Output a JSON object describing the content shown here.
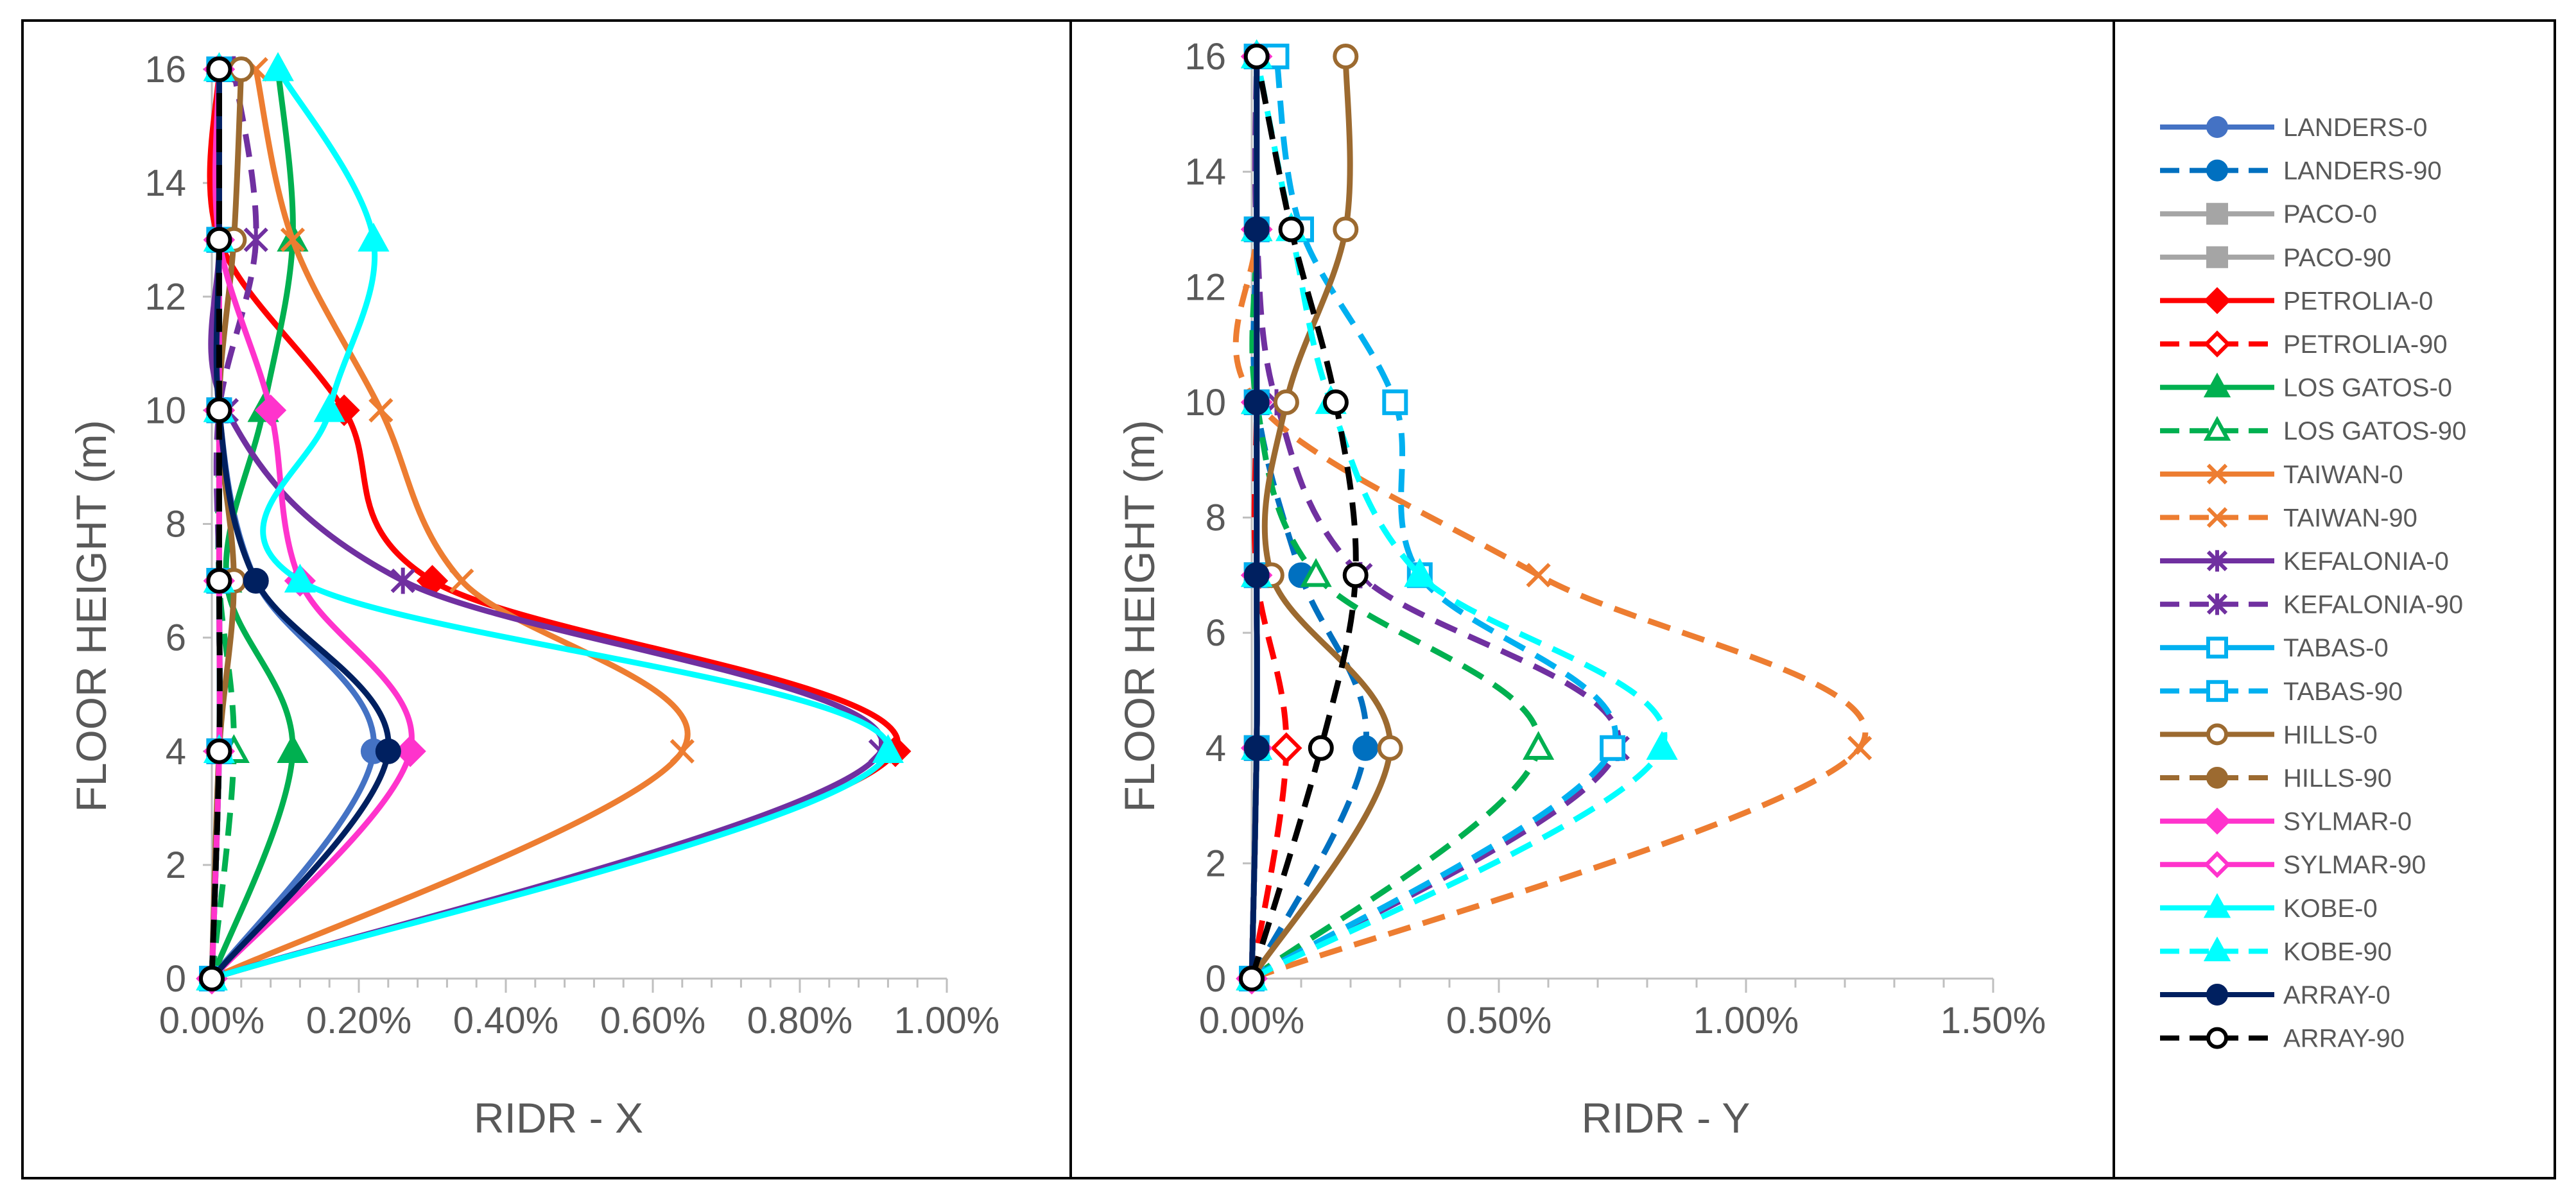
{
  "chart_data": [
    {
      "type": "line",
      "panel": "left",
      "orientation": "x-value-vs-height",
      "xlabel": "RIDR - X",
      "ylabel": "FLOOR HEIGHT (m)",
      "xlim": [
        0,
        0.01
      ],
      "ylim": [
        0,
        16
      ],
      "xticks": [
        0,
        0.002,
        0.004,
        0.006,
        0.008,
        0.01
      ],
      "xtick_labels": [
        "0.00%",
        "0.20%",
        "0.40%",
        "0.60%",
        "0.80%",
        "1.00%"
      ],
      "yticks": [
        0,
        2,
        4,
        6,
        8,
        10,
        12,
        14,
        16
      ],
      "ytick_labels": [
        "0",
        "2",
        "4",
        "6",
        "8",
        "10",
        "12",
        "14",
        "16"
      ],
      "heights": [
        0,
        4,
        7,
        10,
        13,
        16
      ],
      "series": [
        {
          "name": "LANDERS-0",
          "values": [
            0,
            0.0022,
            0.0006,
            0.0001,
            0.0001,
            0.0001
          ]
        },
        {
          "name": "LANDERS-90",
          "values": [
            0,
            0.0001,
            0.0001,
            0.0001,
            0.0001,
            0.0001
          ]
        },
        {
          "name": "PACO-0",
          "values": [
            0,
            0.0001,
            0.0001,
            0.0001,
            0.0001,
            0.0001
          ]
        },
        {
          "name": "PACO-90",
          "values": [
            0,
            0.0001,
            0.0001,
            0.0001,
            0.0001,
            0.0001
          ]
        },
        {
          "name": "PETROLIA-0",
          "values": [
            0,
            0.0093,
            0.003,
            0.0018,
            0.0001,
            0.0001
          ]
        },
        {
          "name": "PETROLIA-90",
          "values": [
            0,
            0.0001,
            0.0001,
            0.0001,
            0.0001,
            0.0001
          ]
        },
        {
          "name": "LOS GATOS-0",
          "values": [
            0,
            0.0011,
            0.0002,
            0.0007,
            0.0011,
            0.0009
          ]
        },
        {
          "name": "LOS GATOS-90",
          "values": [
            0,
            0.0003,
            0.0001,
            0.0001,
            0.0001,
            0.0001
          ]
        },
        {
          "name": "TAIWAN-0",
          "values": [
            0,
            0.0064,
            0.0034,
            0.0023,
            0.0011,
            0.0006
          ]
        },
        {
          "name": "TAIWAN-90",
          "values": [
            0,
            0.0001,
            0.0001,
            0.0001,
            0.0001,
            0.0001
          ]
        },
        {
          "name": "KEFALONIA-0",
          "values": [
            0,
            0.0091,
            0.0026,
            0.0002,
            0.0001,
            0.0001
          ]
        },
        {
          "name": "KEFALONIA-90",
          "values": [
            0,
            0.0001,
            0.0001,
            0.0001,
            0.0006,
            0.0003
          ]
        },
        {
          "name": "TABAS-0",
          "values": [
            0,
            0.0001,
            0.0001,
            0.0001,
            0.0001,
            0.0001
          ]
        },
        {
          "name": "TABAS-90",
          "values": [
            0,
            0.0001,
            0.0001,
            0.0001,
            0.0001,
            0.0001
          ]
        },
        {
          "name": "HILLS-0",
          "values": [
            0,
            0.0001,
            0.0003,
            0.0001,
            0.0003,
            0.0004
          ]
        },
        {
          "name": "HILLS-90",
          "values": [
            0,
            0.0001,
            0.0001,
            0.0001,
            0.0001,
            0.0001
          ]
        },
        {
          "name": "SYLMAR-0",
          "values": [
            0,
            0.0027,
            0.0012,
            0.0008,
            0.0001,
            0.0001
          ]
        },
        {
          "name": "SYLMAR-90",
          "values": [
            0,
            0.0001,
            0.0001,
            0.0001,
            0.0001,
            0.0001
          ]
        },
        {
          "name": "KOBE-0",
          "values": [
            0,
            0.0092,
            0.0012,
            0.0016,
            0.0022,
            0.0009
          ]
        },
        {
          "name": "KOBE-90",
          "values": [
            0,
            0.0001,
            0.0001,
            0.0001,
            0.0001,
            0.0001
          ]
        },
        {
          "name": "ARRAY-0",
          "values": [
            0,
            0.0024,
            0.0006,
            0.0001,
            0.0001,
            0.0001
          ]
        },
        {
          "name": "ARRAY-90",
          "values": [
            0,
            0.0001,
            0.0001,
            0.0001,
            0.0001,
            0.0001
          ]
        }
      ]
    },
    {
      "type": "line",
      "panel": "middle",
      "orientation": "x-value-vs-height",
      "xlabel": "RIDR - Y",
      "ylabel": "FLOOR HEIGHT (m)",
      "xlim": [
        0,
        0.015
      ],
      "ylim": [
        0,
        16
      ],
      "xticks": [
        0,
        0.005,
        0.01,
        0.015
      ],
      "xtick_labels": [
        "0.00%",
        "0.50%",
        "1.00%",
        "1.50%"
      ],
      "yticks": [
        0,
        2,
        4,
        6,
        8,
        10,
        12,
        14,
        16
      ],
      "ytick_labels": [
        "0",
        "2",
        "4",
        "6",
        "8",
        "10",
        "12",
        "14",
        "16"
      ],
      "heights": [
        0,
        4,
        7,
        10,
        13,
        16
      ],
      "series": [
        {
          "name": "LANDERS-0",
          "values": [
            0,
            0.0001,
            0.0001,
            0.0001,
            0.0001,
            0.0001
          ]
        },
        {
          "name": "LANDERS-90",
          "values": [
            0,
            0.0023,
            0.001,
            0.0001,
            0.0001,
            0.0001
          ]
        },
        {
          "name": "PACO-0",
          "values": [
            0,
            0.0001,
            0.0001,
            0.0001,
            0.0001,
            0.0001
          ]
        },
        {
          "name": "PACO-90",
          "values": [
            0,
            0.0001,
            0.0001,
            0.0001,
            0.0001,
            0.0001
          ]
        },
        {
          "name": "PETROLIA-0",
          "values": [
            0,
            0.0001,
            0.0001,
            0.0001,
            0.0001,
            0.0001
          ]
        },
        {
          "name": "PETROLIA-90",
          "values": [
            0,
            0.0007,
            0.0001,
            0.0001,
            0.0001,
            0.0001
          ]
        },
        {
          "name": "LOS GATOS-0",
          "values": [
            0,
            0.0001,
            0.0001,
            0.0001,
            0.0001,
            0.0001
          ]
        },
        {
          "name": "LOS GATOS-90",
          "values": [
            0,
            0.0058,
            0.0013,
            0.0001,
            0.0001,
            0.0001
          ]
        },
        {
          "name": "TAIWAN-0",
          "values": [
            0,
            0.0001,
            0.0001,
            0.0001,
            0.0001,
            0.0001
          ]
        },
        {
          "name": "TAIWAN-90",
          "values": [
            0,
            0.0123,
            0.0058,
            0.0001,
            0.0001,
            0.0001
          ]
        },
        {
          "name": "KEFALONIA-0",
          "values": [
            0,
            0.0001,
            0.0001,
            0.0001,
            0.0001,
            0.0001
          ]
        },
        {
          "name": "KEFALONIA-90",
          "values": [
            0,
            0.0074,
            0.0022,
            0.0005,
            0.0001,
            0.0001
          ]
        },
        {
          "name": "TABAS-0",
          "values": [
            0,
            0.0001,
            0.0001,
            0.0001,
            0.0001,
            0.0001
          ]
        },
        {
          "name": "TABAS-90",
          "values": [
            0,
            0.0073,
            0.0034,
            0.0029,
            0.001,
            0.0005
          ]
        },
        {
          "name": "HILLS-0",
          "values": [
            0,
            0.0028,
            0.0004,
            0.0007,
            0.0019,
            0.0019
          ]
        },
        {
          "name": "HILLS-90",
          "values": [
            0,
            0.0001,
            0.0001,
            0.0001,
            0.0001,
            0.0001
          ]
        },
        {
          "name": "SYLMAR-0",
          "values": [
            0,
            0.0001,
            0.0001,
            0.0001,
            0.0001,
            0.0001
          ]
        },
        {
          "name": "SYLMAR-90",
          "values": [
            0,
            0.0001,
            0.0001,
            0.0001,
            0.0001,
            0.0001
          ]
        },
        {
          "name": "KOBE-0",
          "values": [
            0,
            0.0001,
            0.0001,
            0.0001,
            0.0001,
            0.0001
          ]
        },
        {
          "name": "KOBE-90",
          "values": [
            0,
            0.0083,
            0.0034,
            0.0016,
            0.0008,
            0.0001
          ]
        },
        {
          "name": "ARRAY-0",
          "values": [
            0,
            0.0001,
            0.0001,
            0.0001,
            0.0001,
            0.0001
          ]
        },
        {
          "name": "ARRAY-90",
          "values": [
            0,
            0.0014,
            0.0021,
            0.0017,
            0.0008,
            0.0001
          ]
        }
      ]
    }
  ],
  "legend": {
    "placement": "right",
    "entries": [
      {
        "name": "LANDERS-0",
        "color": "#4472C4",
        "dash": "solid",
        "marker": "circle",
        "fill": true
      },
      {
        "name": "LANDERS-90",
        "color": "#0070C0",
        "dash": "dashed",
        "marker": "circle",
        "fill": true
      },
      {
        "name": "PACO-0",
        "color": "#A5A5A5",
        "dash": "solid",
        "marker": "square",
        "fill": true
      },
      {
        "name": "PACO-90",
        "color": "#A5A5A5",
        "dash": "solid",
        "marker": "square",
        "fill": true
      },
      {
        "name": "PETROLIA-0",
        "color": "#FF0000",
        "dash": "solid",
        "marker": "diamond",
        "fill": true
      },
      {
        "name": "PETROLIA-90",
        "color": "#FF0000",
        "dash": "dashed",
        "marker": "diamond",
        "fill": false
      },
      {
        "name": "LOS GATOS-0",
        "color": "#00B050",
        "dash": "solid",
        "marker": "triangle",
        "fill": true
      },
      {
        "name": "LOS GATOS-90",
        "color": "#00B050",
        "dash": "dashed",
        "marker": "triangle",
        "fill": false
      },
      {
        "name": "TAIWAN-0",
        "color": "#ED7D31",
        "dash": "solid",
        "marker": "x",
        "fill": false
      },
      {
        "name": "TAIWAN-90",
        "color": "#ED7D31",
        "dash": "dashed",
        "marker": "x",
        "fill": false
      },
      {
        "name": "KEFALONIA-0",
        "color": "#7030A0",
        "dash": "solid",
        "marker": "star",
        "fill": false
      },
      {
        "name": "KEFALONIA-90",
        "color": "#7030A0",
        "dash": "dashed",
        "marker": "star",
        "fill": false
      },
      {
        "name": "TABAS-0",
        "color": "#00B0F0",
        "dash": "solid",
        "marker": "square",
        "fill": false
      },
      {
        "name": "TABAS-90",
        "color": "#00B0F0",
        "dash": "dashed",
        "marker": "square",
        "fill": false
      },
      {
        "name": "HILLS-0",
        "color": "#9C6A30",
        "dash": "solid",
        "marker": "circle",
        "fill": false
      },
      {
        "name": "HILLS-90",
        "color": "#9C6A30",
        "dash": "dashed",
        "marker": "circle",
        "fill": true
      },
      {
        "name": "SYLMAR-0",
        "color": "#FF33CC",
        "dash": "solid",
        "marker": "diamond",
        "fill": true
      },
      {
        "name": "SYLMAR-90",
        "color": "#FF33CC",
        "dash": "solid",
        "marker": "diamond",
        "fill": false
      },
      {
        "name": "KOBE-0",
        "color": "#00FFFF",
        "dash": "solid",
        "marker": "triangle",
        "fill": true
      },
      {
        "name": "KOBE-90",
        "color": "#00FFFF",
        "dash": "dashed",
        "marker": "triangle",
        "fill": true
      },
      {
        "name": "ARRAY-0",
        "color": "#002060",
        "dash": "solid",
        "marker": "circle",
        "fill": true
      },
      {
        "name": "ARRAY-90",
        "color": "#000000",
        "dash": "dashed",
        "marker": "circle",
        "fill": false
      }
    ]
  },
  "colors": {
    "axis": "#BFBFBF",
    "text": "#595959",
    "frame": "#000000"
  }
}
